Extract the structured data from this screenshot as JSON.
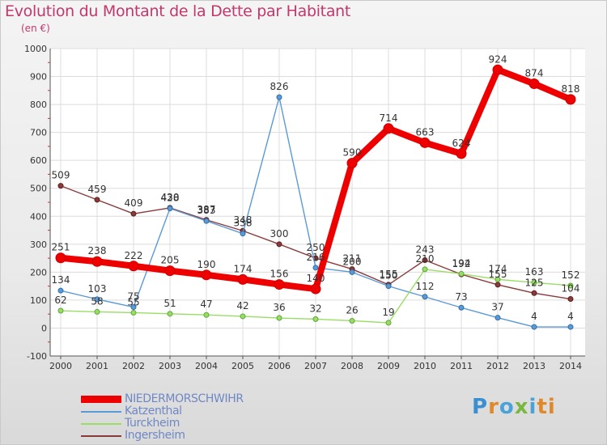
{
  "header": {
    "title": "Evolution du Montant de la Dette par Habitant",
    "unit": "(en €)"
  },
  "brand": {
    "name": "Proxiti",
    "letters": [
      "P",
      "r",
      "o",
      "x",
      "i",
      "ti"
    ]
  },
  "chart_data": {
    "type": "line",
    "title": "Evolution du Montant de la Dette par Habitant",
    "subtitle": "(en €)",
    "x": [
      "2000",
      "2001",
      "2002",
      "2003",
      "2004",
      "2005",
      "2006",
      "2007",
      "2008",
      "2009",
      "2010",
      "2011",
      "2012",
      "2013",
      "2014"
    ],
    "ylim": [
      -100,
      1000
    ],
    "yticks": [
      -100,
      0,
      100,
      200,
      300,
      400,
      500,
      600,
      700,
      800,
      900,
      1000
    ],
    "grid": true,
    "legend_position": "bottom-left",
    "series": [
      {
        "name": "NIEDERMORSCHWIHR",
        "color": "#ee0000",
        "values": [
          251,
          238,
          222,
          205,
          190,
          174,
          156,
          140,
          590,
          714,
          663,
          624,
          924,
          874,
          818
        ]
      },
      {
        "name": "Katzenthal",
        "color": "#5b9ad6",
        "values": [
          134,
          103,
          75,
          428,
          383,
          338,
          826,
          216,
          200,
          150,
          112,
          73,
          37,
          4,
          4
        ]
      },
      {
        "name": "Turckheim",
        "color": "#99dd66",
        "values": [
          62,
          58,
          55,
          51,
          47,
          42,
          36,
          32,
          26,
          19,
          210,
          194,
          174,
          163,
          152
        ]
      },
      {
        "name": "Ingersheim",
        "color": "#8b3a3a",
        "values": [
          509,
          459,
          409,
          430,
          387,
          348,
          300,
          250,
          211,
          155,
          243,
          192,
          155,
          125,
          104
        ]
      }
    ]
  }
}
